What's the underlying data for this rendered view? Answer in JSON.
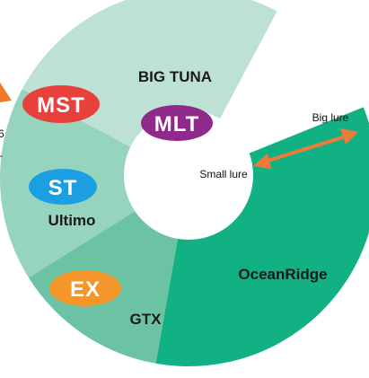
{
  "segments": [
    {
      "label": "BIG TUNA"
    },
    {
      "label": "Ultimo"
    },
    {
      "label": "GTX"
    },
    {
      "label": "OceanRidge"
    }
  ],
  "badges": [
    {
      "label": "MST"
    },
    {
      "label": "MLT"
    },
    {
      "label": "ST"
    },
    {
      "label": "EX"
    }
  ],
  "arrow": {
    "start_label": "Small lure",
    "end_label": "Big lure"
  },
  "edge_fragments": [
    "6",
    "+"
  ]
}
